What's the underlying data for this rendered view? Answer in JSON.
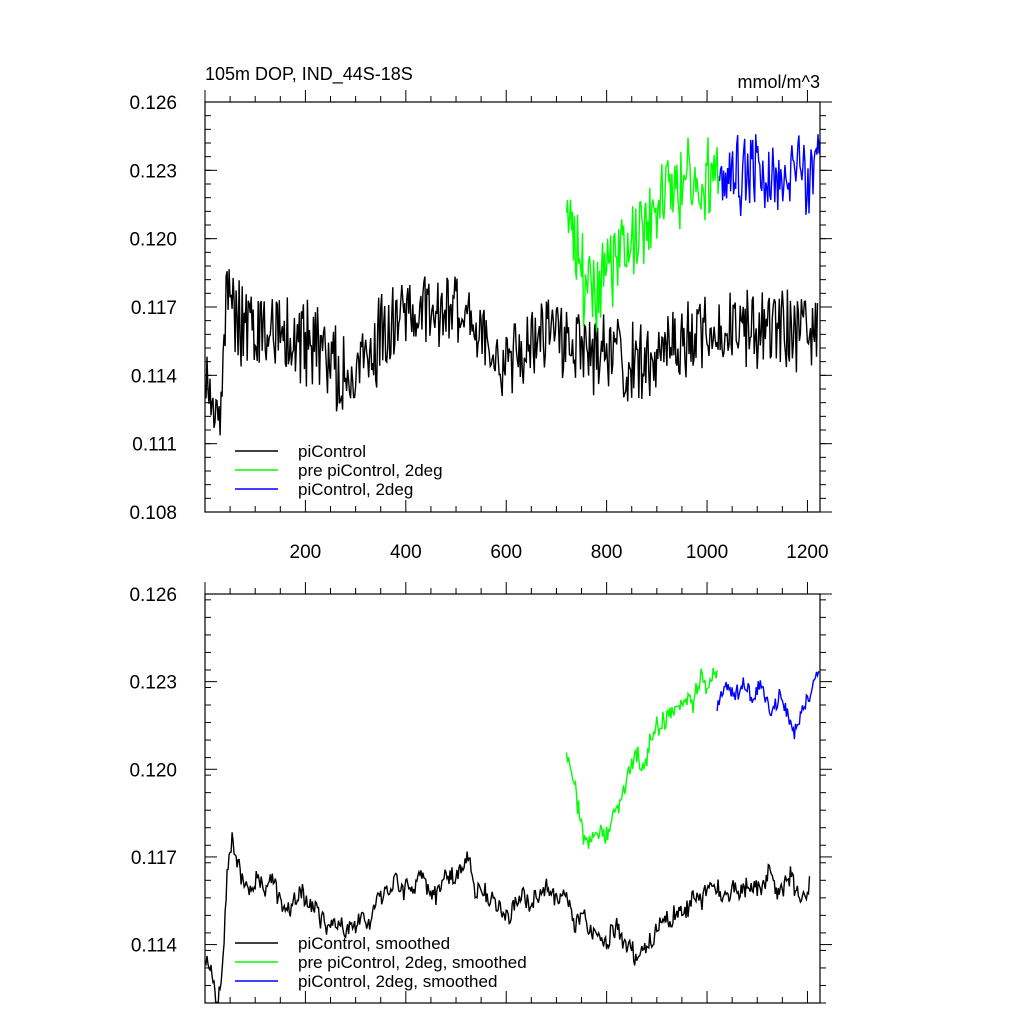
{
  "chart_data": [
    {
      "type": "line",
      "title": "105m DOP, IND_44S-18S",
      "units": "mmol/m^3",
      "xlim": [
        0,
        1225
      ],
      "ylim": [
        0.108,
        0.126
      ],
      "yticks": [
        "0.126",
        "0.123",
        "0.120",
        "0.117",
        "0.114",
        "0.111",
        "0.108"
      ],
      "xticks": [
        "200",
        "400",
        "600",
        "800",
        "1000",
        "1200"
      ],
      "legend_position": "bottom-left",
      "series": [
        {
          "name": "piControl",
          "color": "#000000",
          "x_range": [
            0,
            1220
          ],
          "mean": 0.1154,
          "noise": 0.0016,
          "keypoints": [
            [
              0,
              0.114
            ],
            [
              30,
              0.112
            ],
            [
              45,
              0.1185
            ],
            [
              60,
              0.1165
            ],
            [
              200,
              0.1155
            ],
            [
              290,
              0.114
            ],
            [
              380,
              0.1165
            ],
            [
              520,
              0.117
            ],
            [
              600,
              0.1145
            ],
            [
              700,
              0.116
            ],
            [
              760,
              0.115
            ],
            [
              860,
              0.1145
            ],
            [
              1000,
              0.116
            ],
            [
              1220,
              0.116
            ]
          ]
        },
        {
          "name": "pre piControl, 2deg",
          "color": "#00ff00",
          "x_range": [
            720,
            1025
          ],
          "noise": 0.0017,
          "keypoints": [
            [
              720,
              0.121
            ],
            [
              760,
              0.1175
            ],
            [
              800,
              0.1185
            ],
            [
              840,
              0.1195
            ],
            [
              900,
              0.1215
            ],
            [
              960,
              0.1225
            ],
            [
              1025,
              0.1225
            ]
          ]
        },
        {
          "name": "piControl, 2deg",
          "color": "#0000ff",
          "x_range": [
            1025,
            1225
          ],
          "noise": 0.0015,
          "keypoints": [
            [
              1025,
              0.1228
            ],
            [
              1100,
              0.123
            ],
            [
              1160,
              0.1225
            ],
            [
              1225,
              0.1232
            ]
          ]
        }
      ]
    },
    {
      "type": "line",
      "title": "",
      "units": "",
      "xlim": [
        0,
        1225
      ],
      "ylim": [
        0.112,
        0.126
      ],
      "yticks": [
        "0.126",
        "0.123",
        "0.120",
        "0.117",
        "0.114"
      ],
      "xticks": [],
      "legend_position": "bottom-left",
      "series": [
        {
          "name": "piControl, smoothed",
          "color": "#000000",
          "x_range": [
            0,
            1205
          ],
          "noise": 0.0012,
          "keypoints": [
            [
              0,
              0.1135
            ],
            [
              30,
              0.1115
            ],
            [
              50,
              0.118
            ],
            [
              80,
              0.116
            ],
            [
              200,
              0.1155
            ],
            [
              290,
              0.1145
            ],
            [
              380,
              0.116
            ],
            [
              520,
              0.1165
            ],
            [
              600,
              0.115
            ],
            [
              700,
              0.116
            ],
            [
              760,
              0.1145
            ],
            [
              860,
              0.114
            ],
            [
              1000,
              0.116
            ],
            [
              1205,
              0.116
            ]
          ]
        },
        {
          "name": "pre piControl, 2deg, smoothed",
          "color": "#00ff00",
          "x_range": [
            720,
            1020
          ],
          "noise": 0.0012,
          "keypoints": [
            [
              720,
              0.121
            ],
            [
              760,
              0.117
            ],
            [
              800,
              0.118
            ],
            [
              840,
              0.1195
            ],
            [
              900,
              0.1215
            ],
            [
              960,
              0.1225
            ],
            [
              1020,
              0.123
            ]
          ]
        },
        {
          "name": "piControl, 2deg, smoothed",
          "color": "#0000ff",
          "x_range": [
            1020,
            1225
          ],
          "noise": 0.001,
          "keypoints": [
            [
              1020,
              0.1225
            ],
            [
              1100,
              0.1228
            ],
            [
              1170,
              0.1215
            ],
            [
              1225,
              0.1235
            ]
          ]
        }
      ]
    }
  ]
}
